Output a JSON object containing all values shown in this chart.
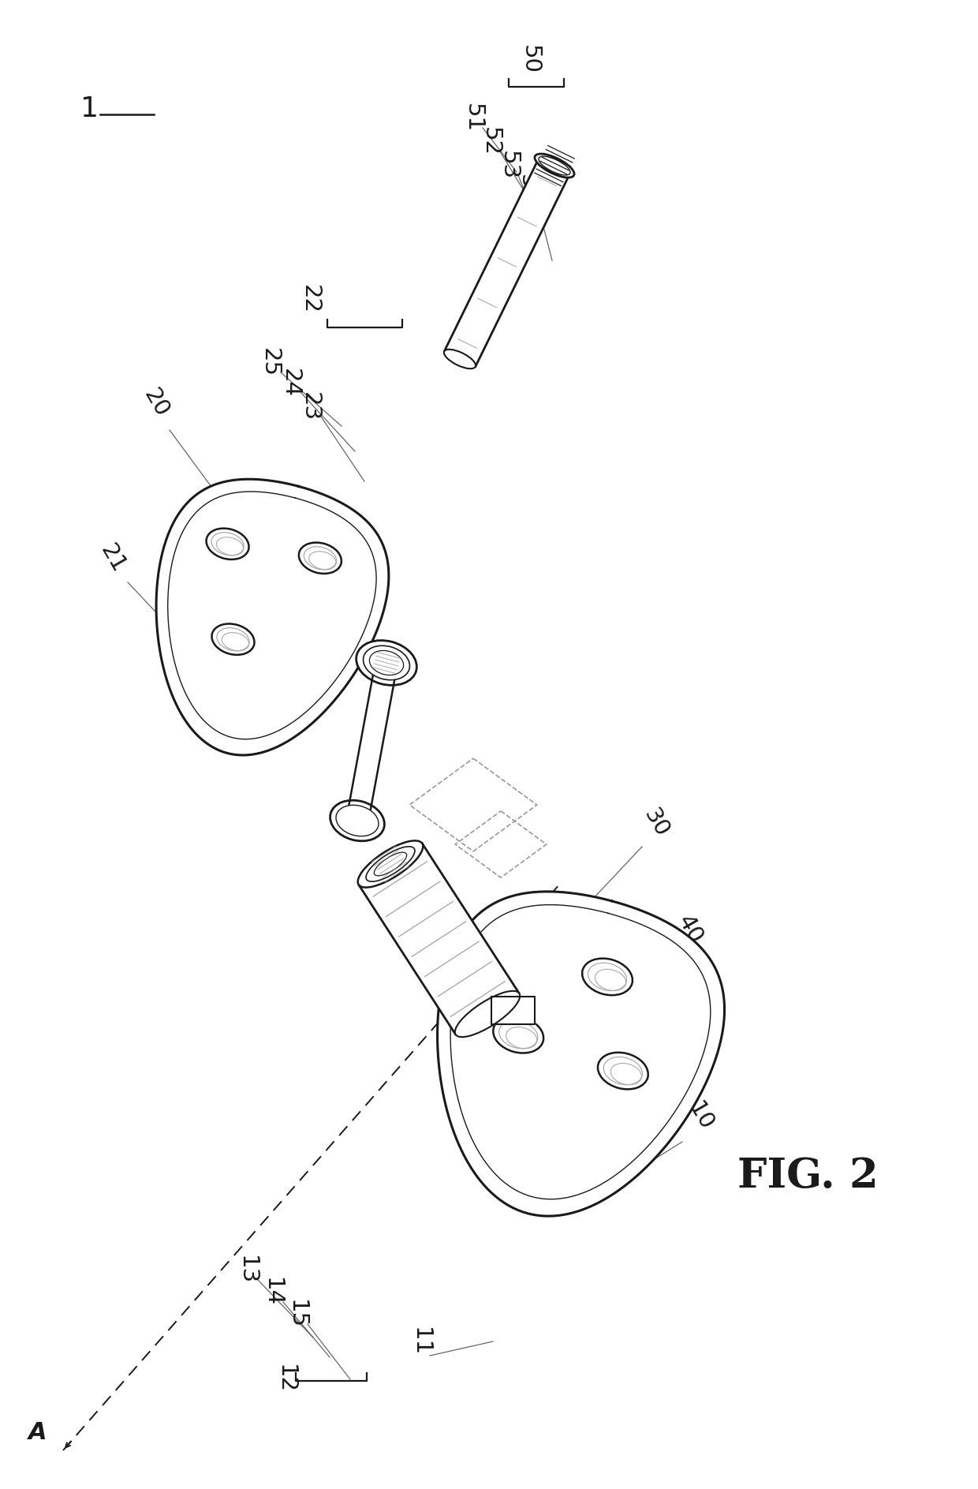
{
  "background_color": "#ffffff",
  "line_color": "#1a1a1a",
  "gray_color": "#666666",
  "light_gray": "#aaaaaa",
  "dark_gray": "#444444",
  "fig_label": "FIG. 2"
}
